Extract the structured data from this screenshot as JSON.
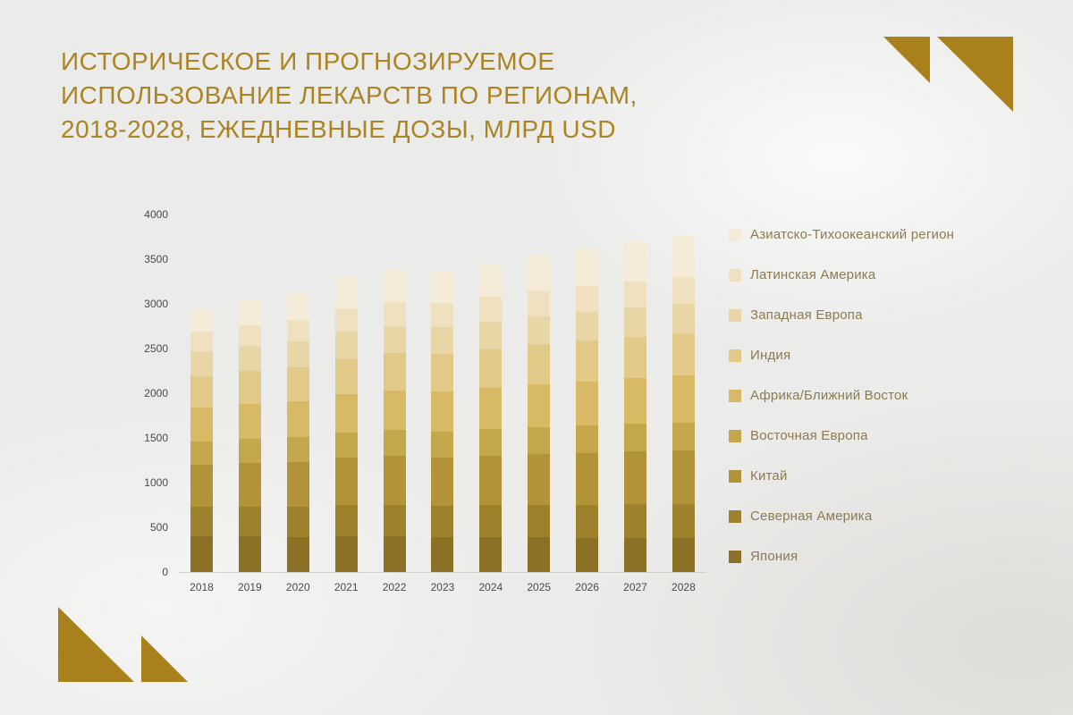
{
  "page": {
    "background_color": "#ebebe9",
    "accent_color": "#a8801c"
  },
  "title": {
    "line1": "ИСТОРИЧЕСКОЕ И ПРОГНОЗИРУЕМОЕ",
    "line2": "ИСПОЛЬЗОВАНИЕ ЛЕКАРСТВ ПО РЕГИОНАМ,",
    "line3": "2018-2028, ЕЖЕДНЕВНЫЕ ДОЗЫ, МЛРД USD",
    "color": "#ab8424"
  },
  "chart_data": {
    "type": "bar",
    "stacked": true,
    "title": "Историческое и прогнозируемое использование лекарств по регионам, 2018-2028, ежедневные дозы, млрд USD",
    "xlabel": "",
    "ylabel": "",
    "grid": false,
    "legend_position": "right",
    "ylim": [
      0,
      4000
    ],
    "y_ticks": [
      0,
      500,
      1000,
      1500,
      2000,
      2500,
      3000,
      3500,
      4000
    ],
    "categories": [
      "2018",
      "2019",
      "2020",
      "2021",
      "2022",
      "2023",
      "2024",
      "2025",
      "2026",
      "2027",
      "2028"
    ],
    "series_note": "series listed bottom-of-stack to top-of-stack; legend displays reverse order",
    "series": [
      {
        "name": "Япония",
        "color": "#8a7125",
        "values": [
          400,
          400,
          395,
          400,
          400,
          390,
          390,
          390,
          385,
          385,
          380
        ]
      },
      {
        "name": "Северная Америка",
        "color": "#9d812c",
        "values": [
          330,
          335,
          340,
          350,
          355,
          355,
          360,
          365,
          370,
          375,
          380
        ]
      },
      {
        "name": "Китай",
        "color": "#b29338",
        "values": [
          470,
          490,
          500,
          530,
          545,
          540,
          555,
          570,
          580,
          590,
          600
        ]
      },
      {
        "name": "Восточная Европа",
        "color": "#c4a64b",
        "values": [
          265,
          270,
          275,
          285,
          290,
          290,
          295,
          300,
          305,
          310,
          315
        ]
      },
      {
        "name": "Африка/Ближний Восток",
        "color": "#d7b966",
        "values": [
          375,
          390,
          405,
          430,
          445,
          450,
          465,
          480,
          495,
          510,
          525
        ]
      },
      {
        "name": "Индия",
        "color": "#e1c987",
        "values": [
          350,
          365,
          380,
          400,
          415,
          415,
          430,
          445,
          455,
          465,
          475
        ]
      },
      {
        "name": "Западная Европа",
        "color": "#e9d6a7",
        "values": [
          280,
          285,
          290,
          300,
          305,
          305,
          310,
          315,
          320,
          325,
          330
        ]
      },
      {
        "name": "Латинская Америка",
        "color": "#efe0c0",
        "values": [
          220,
          230,
          240,
          255,
          265,
          265,
          275,
          285,
          290,
          295,
          300
        ]
      },
      {
        "name": "Азиатско-Тихоокеанский регион",
        "color": "#f4ebd8",
        "values": [
          260,
          285,
          305,
          350,
          360,
          360,
          370,
          400,
          420,
          445,
          455
        ]
      }
    ],
    "totals": [
      2950,
      3050,
      3130,
      3300,
      3380,
      3370,
      3450,
      3550,
      3620,
      3700,
      3760
    ]
  }
}
